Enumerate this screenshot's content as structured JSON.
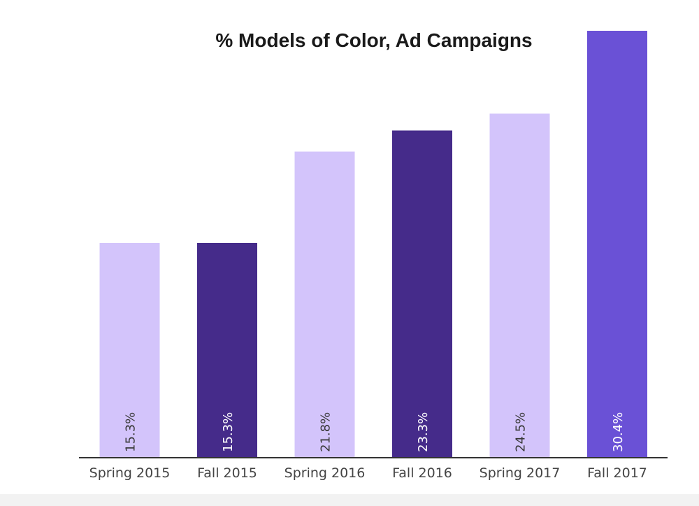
{
  "chart_data": {
    "type": "bar",
    "title": "% Models of Color, Ad Campaigns",
    "xlabel": "",
    "ylabel": "",
    "categories": [
      "Spring 2015",
      "Fall 2015",
      "Spring 2016",
      "Fall 2016",
      "Spring 2017",
      "Fall 2017"
    ],
    "values": [
      15.3,
      15.3,
      21.8,
      23.3,
      24.5,
      30.4
    ],
    "data_labels": [
      "15.3%",
      "15.3%",
      "21.8%",
      "23.3%",
      "24.5%",
      "30.4%"
    ],
    "ylim": [
      0,
      30.4
    ],
    "grid": false,
    "legend": "none",
    "colors": [
      "#d3c4fb",
      "#452b8a",
      "#d3c4fb",
      "#452b8a",
      "#d3c4fb",
      "#6a51d6"
    ],
    "label_colors": [
      "#3a3a3a",
      "#ffffff",
      "#3a3a3a",
      "#ffffff",
      "#3a3a3a",
      "#ffffff"
    ],
    "axis_color": "#333333"
  }
}
